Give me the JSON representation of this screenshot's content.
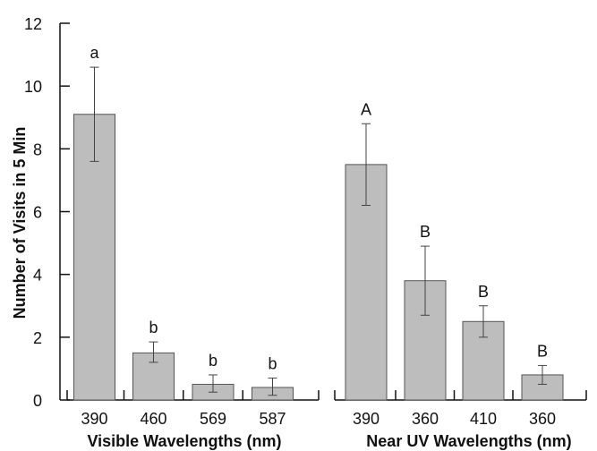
{
  "chart_data": {
    "type": "bar",
    "ylabel": "Number of Visits in 5 Min",
    "ylim": [
      0,
      12
    ],
    "yticks": [
      0,
      2,
      4,
      6,
      8,
      10,
      12
    ],
    "grid": false,
    "colors": {
      "bar": "#bdbdbd",
      "bar_edge": "#555555",
      "axis": "#111111"
    },
    "panels": [
      {
        "xlabel": "Visible Wavelengths (nm)",
        "categories": [
          "390",
          "460",
          "569",
          "587"
        ],
        "values": [
          9.1,
          1.5,
          0.5,
          0.4
        ],
        "error_low": [
          7.6,
          1.2,
          0.25,
          0.15
        ],
        "error_high": [
          10.6,
          1.85,
          0.8,
          0.7
        ],
        "letters": [
          "a",
          "b",
          "b",
          "b"
        ]
      },
      {
        "xlabel": "Near UV Wavelengths (nm)",
        "categories": [
          "390",
          "360",
          "410",
          "360"
        ],
        "values": [
          7.5,
          3.8,
          2.5,
          0.8
        ],
        "error_low": [
          6.2,
          2.7,
          2.0,
          0.5
        ],
        "error_high": [
          8.8,
          4.9,
          3.0,
          1.1
        ],
        "letters": [
          "A",
          "B",
          "B",
          "B"
        ]
      }
    ]
  }
}
